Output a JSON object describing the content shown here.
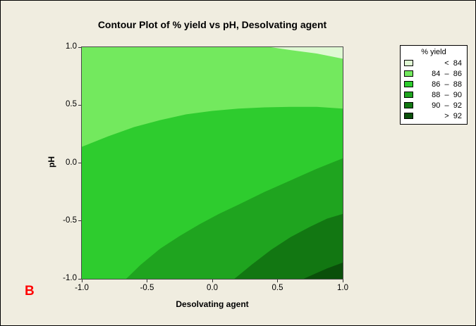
{
  "window": {
    "corner_label": "B"
  },
  "chart_data": {
    "type": "contour",
    "title": "Contour Plot of % yield vs pH, Desolvating agent",
    "xlabel": "Desolvating agent",
    "ylabel": "pH",
    "xlim": [
      -1,
      1
    ],
    "ylim": [
      -1,
      1
    ],
    "grid": false,
    "legend_position": "top-right",
    "xticks": [
      {
        "v": -1.0,
        "label": "-1.0"
      },
      {
        "v": -0.5,
        "label": "-0.5"
      },
      {
        "v": 0.0,
        "label": "0.0"
      },
      {
        "v": 0.5,
        "label": "0.5"
      },
      {
        "v": 1.0,
        "label": "1.0"
      }
    ],
    "yticks": [
      {
        "v": 1.0,
        "label": "1.0"
      },
      {
        "v": 0.5,
        "label": "0.5"
      },
      {
        "v": 0.0,
        "label": "0.0"
      },
      {
        "v": -0.5,
        "label": "-0.5"
      },
      {
        "v": -1.0,
        "label": "-1.0"
      }
    ],
    "legend": {
      "title": "% yield",
      "items": [
        {
          "label": "<  84",
          "color": "#dff9d3"
        },
        {
          "label": "84  –  86",
          "color": "#73e95e"
        },
        {
          "label": "86  –  88",
          "color": "#2ecc2e"
        },
        {
          "label": "88  –  90",
          "color": "#1fa41f"
        },
        {
          "label": "90  –  92",
          "color": "#127712"
        },
        {
          "label": ">  92",
          "color": "#0a4f0a"
        }
      ]
    },
    "base_band": {
      "name": "84-86",
      "color": "#73e95e"
    },
    "regions": [
      {
        "name": "lt-84",
        "color": "#dff9d3",
        "close": "topright",
        "boundary": [
          [
            0.45,
            1.0
          ],
          [
            0.6,
            0.975
          ],
          [
            0.8,
            0.945
          ],
          [
            1.0,
            0.9
          ]
        ]
      },
      {
        "name": "86-88",
        "color": "#2ecc2e",
        "close": "bottom",
        "boundary": [
          [
            -1.0,
            0.14
          ],
          [
            -0.8,
            0.23
          ],
          [
            -0.6,
            0.31
          ],
          [
            -0.4,
            0.37
          ],
          [
            -0.2,
            0.42
          ],
          [
            0.0,
            0.45
          ],
          [
            0.2,
            0.47
          ],
          [
            0.4,
            0.48
          ],
          [
            0.6,
            0.485
          ],
          [
            0.8,
            0.485
          ],
          [
            1.0,
            0.47
          ]
        ]
      },
      {
        "name": "88-90",
        "color": "#1fa41f",
        "close": "bottomright",
        "boundary": [
          [
            -0.66,
            -1.0
          ],
          [
            -0.55,
            -0.88
          ],
          [
            -0.4,
            -0.74
          ],
          [
            -0.25,
            -0.63
          ],
          [
            -0.1,
            -0.53
          ],
          [
            0.05,
            -0.44
          ],
          [
            0.2,
            -0.36
          ],
          [
            0.4,
            -0.25
          ],
          [
            0.6,
            -0.15
          ],
          [
            0.8,
            -0.05
          ],
          [
            1.0,
            0.04
          ]
        ]
      },
      {
        "name": "90-92",
        "color": "#127712",
        "close": "bottomright",
        "boundary": [
          [
            0.17,
            -1.0
          ],
          [
            0.3,
            -0.88
          ],
          [
            0.45,
            -0.75
          ],
          [
            0.6,
            -0.64
          ],
          [
            0.75,
            -0.55
          ],
          [
            0.88,
            -0.48
          ],
          [
            1.0,
            -0.44
          ]
        ]
      },
      {
        "name": "gt-92",
        "color": "#0a4f0a",
        "close": "bottomright",
        "boundary": [
          [
            0.7,
            -1.0
          ],
          [
            0.78,
            -0.96
          ],
          [
            0.88,
            -0.91
          ],
          [
            1.0,
            -0.86
          ]
        ]
      }
    ]
  }
}
